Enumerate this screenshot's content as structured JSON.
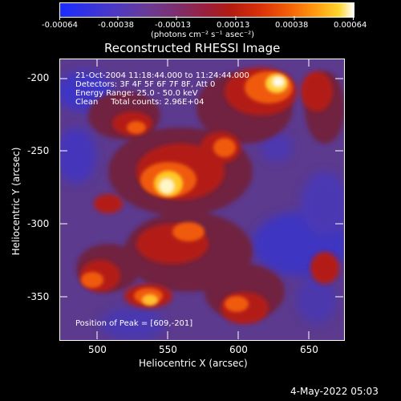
{
  "colorbar": {
    "tick_labels": [
      "-0.00064",
      "-0.00038",
      "-0.00013",
      "0.00013",
      "0.00038",
      "0.00064"
    ],
    "units": "(photons cm⁻² s⁻¹ asec⁻²)",
    "colormap": [
      "#1b2cff",
      "#4b39c5",
      "#6b3b95",
      "#7e2e6d",
      "#9a1f3a",
      "#b21b10",
      "#d83009",
      "#f46008",
      "#ff9a0f",
      "#ffd52e",
      "#ffffff"
    ]
  },
  "image": {
    "title": "Reconstructed RHESSI Image",
    "xlabel": "Heliocentric X (arcsec)",
    "ylabel": "Heliocentric Y (arcsec)",
    "x_ticks": [
      "500",
      "550",
      "600",
      "650"
    ],
    "y_ticks": [
      "-200",
      "-250",
      "-300",
      "-350"
    ],
    "info_lines": [
      "21-Oct-2004 11:18:44.000 to 11:24:44.000",
      "Detectors: 3F 4F 5F 6F 7F 8F, Att 0",
      "Energy Range: 25.0 - 50.0 keV",
      "Clean     Total counts: 2.96E+04"
    ],
    "peak_text": "Position of Peak = [609,-201]",
    "date_stamp": "4-May-2022 05:03"
  }
}
